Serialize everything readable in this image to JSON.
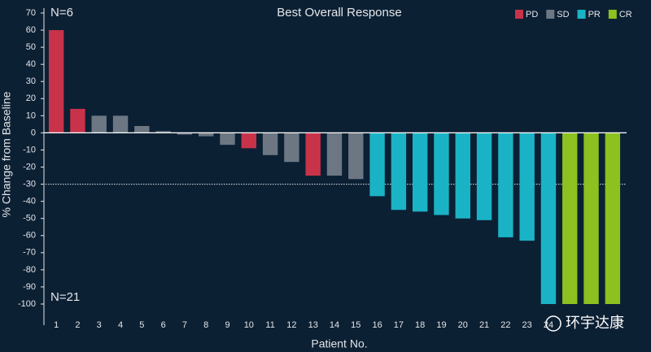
{
  "chart_data": {
    "type": "bar",
    "title": "Best Overall Response",
    "x_label": "Patient No.",
    "y_label": "% Change from Baseline",
    "annotations": [
      "N=6",
      "N=21"
    ],
    "watermark": "环宇达康",
    "categories": [
      "1",
      "2",
      "3",
      "4",
      "5",
      "6",
      "7",
      "8",
      "9",
      "10",
      "11",
      "12",
      "13",
      "14",
      "15",
      "16",
      "17",
      "18",
      "19",
      "20",
      "21",
      "22",
      "23",
      "24",
      null,
      null,
      null
    ],
    "series": [
      {
        "name": "PD",
        "color": "#c8334a",
        "values": [
          60,
          14,
          null,
          null,
          null,
          null,
          null,
          null,
          null,
          -9,
          null,
          null,
          -25,
          null,
          null,
          null,
          null,
          null,
          null,
          null,
          null,
          null,
          null,
          null,
          null,
          null,
          null
        ]
      },
      {
        "name": "SD",
        "color": "#6c7783",
        "values": [
          null,
          null,
          10,
          10,
          4,
          1,
          -1,
          -2,
          -7,
          null,
          -13,
          -17,
          null,
          -25,
          -27,
          null,
          null,
          null,
          null,
          null,
          null,
          null,
          null,
          null,
          null,
          null,
          null
        ]
      },
      {
        "name": "PR",
        "color": "#1ab3c6",
        "values": [
          null,
          null,
          null,
          null,
          null,
          null,
          null,
          null,
          null,
          null,
          null,
          null,
          null,
          null,
          null,
          -37,
          -45,
          -46,
          -48,
          -50,
          -51,
          -61,
          -63,
          -100,
          null,
          null,
          null
        ]
      },
      {
        "name": "CR",
        "color": "#8cc11f",
        "values": [
          null,
          null,
          null,
          null,
          null,
          null,
          null,
          null,
          null,
          null,
          null,
          null,
          null,
          null,
          null,
          null,
          null,
          null,
          null,
          null,
          null,
          null,
          null,
          null,
          -100,
          -100,
          -100
        ]
      }
    ],
    "reference_line": -30,
    "ylim": [
      -100,
      70
    ],
    "yticks": [
      -100,
      -90,
      -80,
      -70,
      -60,
      -50,
      -40,
      -30,
      -20,
      -10,
      0,
      10,
      20,
      30,
      40,
      50,
      60,
      70
    ],
    "legend": "top-right"
  }
}
